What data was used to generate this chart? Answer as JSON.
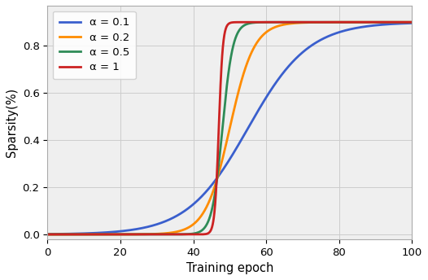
{
  "title": "",
  "xlabel": "Training epoch",
  "ylabel": "Sparsity(%)",
  "xlim": [
    0,
    100
  ],
  "ylim": [
    -0.02,
    0.97
  ],
  "xticks": [
    0,
    20,
    40,
    60,
    80,
    100
  ],
  "yticks": [
    0.0,
    0.2,
    0.4,
    0.6,
    0.8
  ],
  "total_epochs": 100,
  "target_sparsity": 0.9,
  "series": [
    {
      "alpha": 0.12,
      "t0": 55,
      "color": "#3a5fcd",
      "label": "α = 0.1"
    },
    {
      "alpha": 0.3,
      "t0": 50,
      "color": "#ff8c00",
      "label": "α = 0.2"
    },
    {
      "alpha": 0.7,
      "t0": 48,
      "color": "#2e8b57",
      "label": "α = 0.5"
    },
    {
      "alpha": 1.8,
      "t0": 47,
      "color": "#cc2222",
      "label": "α = 1"
    }
  ],
  "linewidth": 2.0,
  "legend_fontsize": 9.5,
  "tick_fontsize": 9.5,
  "label_fontsize": 10.5,
  "grid": true,
  "grid_color": "#cccccc",
  "grid_linewidth": 0.7,
  "bg_color": "#efefef"
}
